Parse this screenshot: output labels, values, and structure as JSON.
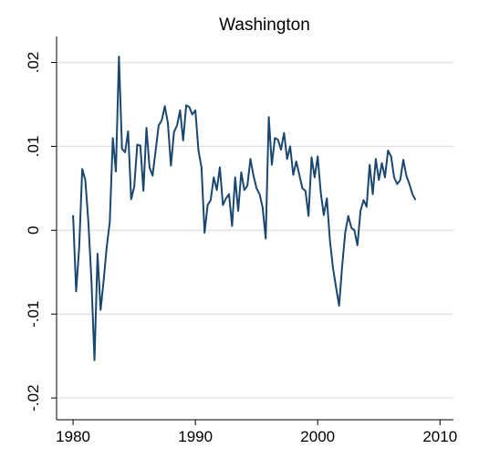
{
  "chart_data": {
    "type": "line",
    "title": "Washington",
    "x": [
      1980,
      1980.25,
      1980.5,
      1980.75,
      1981,
      1981.25,
      1981.5,
      1981.75,
      1982,
      1982.25,
      1982.5,
      1982.75,
      1983,
      1983.25,
      1983.5,
      1983.75,
      1984,
      1984.25,
      1984.5,
      1984.75,
      1985,
      1985.25,
      1985.5,
      1985.75,
      1986,
      1986.25,
      1986.5,
      1986.75,
      1987,
      1987.25,
      1987.5,
      1987.75,
      1988,
      1988.25,
      1988.5,
      1988.75,
      1989,
      1989.25,
      1989.5,
      1989.75,
      1990,
      1990.25,
      1990.5,
      1990.75,
      1991,
      1991.25,
      1991.5,
      1991.75,
      1992,
      1992.25,
      1992.5,
      1992.75,
      1993,
      1993.25,
      1993.5,
      1993.75,
      1994,
      1994.25,
      1994.5,
      1994.75,
      1995,
      1995.25,
      1995.5,
      1995.75,
      1996,
      1996.25,
      1996.5,
      1996.75,
      1997,
      1997.25,
      1997.5,
      1997.75,
      1998,
      1998.25,
      1998.5,
      1998.75,
      1999,
      1999.25,
      1999.5,
      1999.75,
      2000,
      2000.25,
      2000.5,
      2000.75,
      2001,
      2001.25,
      2001.5,
      2001.75,
      2002,
      2002.25,
      2002.5,
      2002.75,
      2003,
      2003.25,
      2003.5,
      2003.75,
      2004,
      2004.25,
      2004.5,
      2004.75,
      2005,
      2005.25,
      2005.5,
      2005.75,
      2006,
      2006.25,
      2006.5,
      2006.75,
      2007,
      2007.25,
      2007.5,
      2007.75,
      2008
    ],
    "series": [
      {
        "color": "#1a476f",
        "values": [
          0.0018,
          -0.0073,
          -0.002,
          0.0073,
          0.006,
          0.001,
          -0.006,
          -0.0155,
          -0.0028,
          -0.0095,
          -0.006,
          -0.002,
          0.001,
          0.011,
          0.007,
          0.0207,
          0.0097,
          0.0093,
          0.0118,
          0.0037,
          0.0052,
          0.0102,
          0.0101,
          0.0047,
          0.0122,
          0.0075,
          0.0065,
          0.0095,
          0.0125,
          0.0131,
          0.0148,
          0.0128,
          0.0077,
          0.0117,
          0.0125,
          0.0143,
          0.0107,
          0.0149,
          0.0147,
          0.0138,
          0.0143,
          0.0095,
          0.0075,
          -0.0003,
          0.003,
          0.0036,
          0.0063,
          0.0048,
          0.0075,
          0.003,
          0.0038,
          0.0043,
          0.0005,
          0.0063,
          0.0023,
          0.0069,
          0.0048,
          0.0053,
          0.0085,
          0.0065,
          0.005,
          0.0043,
          0.0027,
          -0.001,
          0.0135,
          0.0078,
          0.011,
          0.0108,
          0.0096,
          0.0116,
          0.0085,
          0.01,
          0.0066,
          0.0082,
          0.0066,
          0.005,
          0.0047,
          0.0017,
          0.0087,
          0.0063,
          0.0088,
          0.0045,
          0.0018,
          0.0038,
          -0.0012,
          -0.0045,
          -0.0068,
          -0.009,
          -0.0043,
          -0.0003,
          0.0017,
          0.0003,
          0,
          -0.0018,
          0.0023,
          0.0036,
          0.0028,
          0.0078,
          0.0043,
          0.0085,
          0.006,
          0.008,
          0.0063,
          0.0095,
          0.0088,
          0.0063,
          0.0055,
          0.006,
          0.0084,
          0.0065,
          0.0055,
          0.0043,
          0.0036
        ]
      }
    ],
    "xlim": [
      1978.65,
      2011.1
    ],
    "ylim": [
      -0.0226,
      0.0231
    ],
    "xticks": [
      1980,
      1990,
      2000,
      2010
    ],
    "yticks": [
      {
        "value": 0.02,
        "label": ".02"
      },
      {
        "value": 0.01,
        "label": ".01"
      },
      0,
      {
        "value": -0.01,
        "label": "-.01"
      },
      {
        "value": -0.02,
        "label": "-.02"
      }
    ],
    "grid": true
  }
}
